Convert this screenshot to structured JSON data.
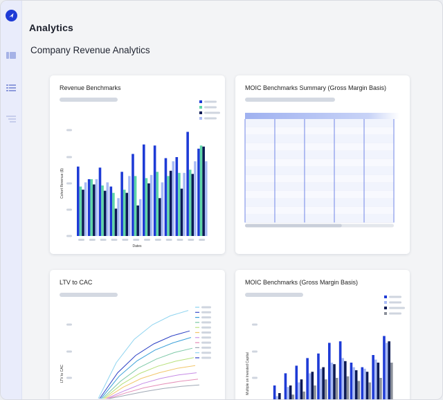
{
  "app": {
    "brand": "Analytics",
    "page_title": "Company Revenue Analytics"
  },
  "sidebar": {
    "items": [
      {
        "icon": "dashboard-icon"
      },
      {
        "icon": "list-icon"
      },
      {
        "icon": "filter-icon"
      }
    ]
  },
  "cards": {
    "revenue": {
      "title": "Revenue Benchmarks"
    },
    "moic_summary": {
      "title": "MOIC Benchmarks Summary (Gross Margin Basis)"
    },
    "ltv": {
      "title": "LTV to CAC"
    },
    "moic": {
      "title": "MOIC Benchmarks (Gross Margin Basis)"
    }
  },
  "colors": {
    "accent": "#1e3bd6",
    "navy": "#0c1a55",
    "green": "#5fd6a8",
    "light_blue": "#a9bbf5",
    "gray": "#8a8f99"
  },
  "chart_data": [
    {
      "type": "bar",
      "title": "Revenue Benchmarks",
      "xlabel": "Dates",
      "ylabel": "Cohort Revenue ($)",
      "ylim": [
        0,
        100
      ],
      "grid": false,
      "legend": "top-right",
      "categories": [
        "",
        "",
        "",
        "",
        "",
        "",
        "",
        "",
        "",
        "",
        "",
        ""
      ],
      "series": [
        {
          "values": [
            66,
            54,
            65,
            47,
            61,
            78,
            87,
            86,
            74,
            75,
            99,
            83
          ]
        },
        {
          "values": [
            47,
            54,
            48,
            41,
            44,
            57,
            55,
            61,
            57,
            60,
            63,
            86
          ]
        },
        {
          "values": [
            44,
            49,
            43,
            26,
            41,
            29,
            50,
            36,
            62,
            45,
            59,
            85
          ]
        },
        {
          "values": [
            51,
            54,
            51,
            36,
            57,
            35,
            58,
            51,
            71,
            60,
            71,
            71
          ]
        }
      ]
    },
    {
      "type": "table",
      "title": "MOIC Benchmarks Summary (Gross Margin Basis)",
      "columns": 5,
      "rows": 13
    },
    {
      "type": "line",
      "title": "LTV to CAC",
      "ylabel": "LTV to CAC",
      "legend": "right",
      "series": [
        {
          "values": [
            0,
            1.0,
            1.65,
            2.05,
            2.3,
            2.45
          ]
        },
        {
          "values": [
            0,
            0.72,
            1.2,
            1.52,
            1.74,
            1.88
          ]
        },
        {
          "values": [
            0,
            0.62,
            1.05,
            1.35,
            1.55,
            1.7
          ]
        },
        {
          "values": [
            0,
            0.48,
            0.85,
            1.1,
            1.28,
            1.4
          ]
        },
        {
          "values": [
            0,
            0.4,
            0.7,
            0.9,
            1.04,
            1.14
          ]
        },
        {
          "values": [
            0,
            0.32,
            0.56,
            0.72,
            0.84,
            0.92
          ]
        },
        {
          "values": [
            0,
            0.22,
            0.42,
            0.56,
            0.66,
            0.72
          ]
        },
        {
          "values": [
            0,
            0.16,
            0.3,
            0.4,
            0.48,
            0.54
          ]
        },
        {
          "values": [
            0,
            0.1,
            0.2,
            0.28,
            0.34,
            0.38
          ]
        }
      ]
    },
    {
      "type": "bar",
      "title": "MOIC Benchmarks (Gross Margin Basis)",
      "ylabel": "Multiple on Invested Capital",
      "legend": "top-right",
      "ylim": [
        0,
        100
      ],
      "categories": [
        "",
        "",
        "",
        "",
        "",
        "",
        "",
        "",
        "",
        "",
        "",
        ""
      ],
      "series": [
        {
          "values": [
            10,
            30,
            46,
            56,
            66,
            72,
            86,
            88,
            60,
            54,
            70,
            95
          ]
        },
        {
          "values": [
            4,
            16,
            28,
            34,
            46,
            52,
            60,
            66,
            54,
            52,
            64,
            86
          ]
        },
        {
          "values": [
            8,
            20,
            30,
            38,
            48,
            54,
            58,
            62,
            50,
            48,
            60,
            88
          ]
        },
        {
          "values": [
            2,
            10,
            18,
            22,
            30,
            38,
            40,
            42,
            36,
            34,
            40,
            60
          ]
        }
      ]
    }
  ]
}
